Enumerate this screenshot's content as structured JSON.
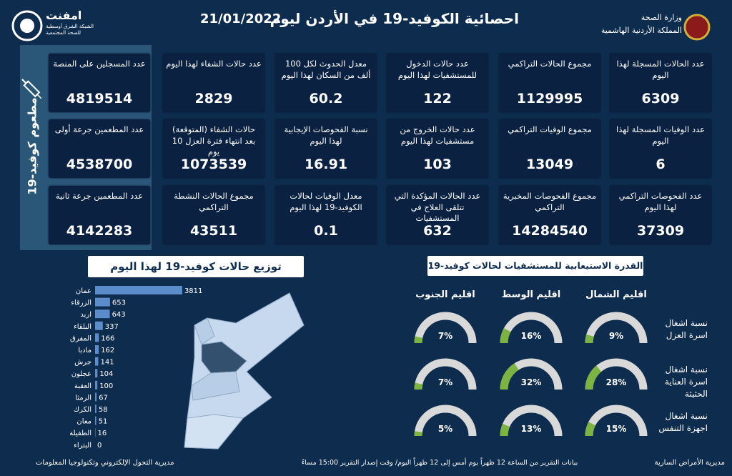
{
  "header": {
    "title": "احصائية الكوفيد-19 في الأردن ليوم",
    "date": "21/01/2022",
    "ministry": "وزارة الصحة",
    "kingdom": "المملكة الأردنية الهاشمية",
    "logo_name": "امفنت",
    "logo_subtitle": "الشبكة الشرق أوسطية للصحة المجتمعية"
  },
  "stats": [
    {
      "label": "عدد الحالات المسجلة لهذا اليوم",
      "value": 6309
    },
    {
      "label": "مجموع الحالات التراكمي",
      "value": 1129995
    },
    {
      "label": "عدد حالات الدخول للمستشفيات لهذا اليوم",
      "value": 122
    },
    {
      "label": "معدل الحدوث لكل 100 ألف من السكان لهذا اليوم",
      "value": 60.2
    },
    {
      "label": "عدد حالات الشفاء لهذا اليوم",
      "value": 2829
    },
    {
      "label": "عدد الوفيات المسجلة لهذا اليوم",
      "value": 6
    },
    {
      "label": "مجموع الوفيات التراكمي",
      "value": 13049
    },
    {
      "label": "عدد حالات الخروج من مستشفيات لهذا اليوم",
      "value": 103
    },
    {
      "label": "نسبة الفحوصات الإيجابية لهذا اليوم",
      "value": 16.91
    },
    {
      "label": "حالات الشفاء (المتوقعة) بعد انتهاء فترة العزل 10 يوم",
      "value": 1073539
    },
    {
      "label": "عدد الفحوصات التراكمي لهذا اليوم",
      "value": 37309
    },
    {
      "label": "مجموع الفحوصات المخبرية التراكمي",
      "value": 14284540
    },
    {
      "label": "عدد الحالات المؤكدة التي تتلقى العلاج في المستشفيات",
      "value": 632
    },
    {
      "label": "معدل الوفيات لحالات الكوفيد-19 لهذا اليوم",
      "value": 0.1
    },
    {
      "label": "مجموع الحالات النشطة التراكمي",
      "value": 43511
    }
  ],
  "vaccination": {
    "title": "مطعوم كوفيد-19",
    "cards": [
      {
        "label": "عدد المسجلين على المنصة",
        "value": 4819514
      },
      {
        "label": "عدد المطعمين جرعة أولى",
        "value": 4538700
      },
      {
        "label": "عدد المطعمين جرعة ثانية",
        "value": 4142283
      }
    ]
  },
  "chart_data": [
    {
      "type": "bar",
      "orientation": "horizontal",
      "title": "توزيع حالات كوفيد-19 لهذا اليوم",
      "categories": [
        "عمان",
        "الزرقاء",
        "اربد",
        "البلقاء",
        "المفرق",
        "مادبا",
        "جرش",
        "عجلون",
        "العقبة",
        "الرمثا",
        "الكرك",
        "معان",
        "الطفيلة",
        "البتراء"
      ],
      "values": [
        3811,
        653,
        643,
        337,
        166,
        162,
        141,
        104,
        100,
        67,
        58,
        51,
        16,
        0
      ],
      "color": "#5b8ccc",
      "xlim": [
        0,
        4000
      ]
    },
    {
      "type": "gauge",
      "title": "القدرة الاستيعابية للمستشفيات لحالات كوفيد-19",
      "categories": [
        "اقليم الشمال",
        "اقليم الوسط",
        "اقليم الجنوب"
      ],
      "ylim": [
        0,
        100
      ],
      "track_color": "#d9d9d9",
      "series": [
        {
          "name": "نسبة اشغال اسرة العزل",
          "color": "#7cb342",
          "values": [
            9,
            16,
            7
          ],
          "value_labels": [
            "9%",
            "16%",
            "7%"
          ]
        },
        {
          "name": "نسبة اشغال اسرة العناية الحثيثة",
          "color": "#7cb342",
          "values": [
            28,
            32,
            7
          ],
          "value_labels": [
            "28%",
            "32%",
            "7%"
          ]
        },
        {
          "name": "نسبة اشغال اجهزة التنفس",
          "color": "#7cb342",
          "values": [
            15,
            13,
            5
          ],
          "value_labels": [
            "15%",
            "13%",
            "5%"
          ]
        }
      ]
    }
  ],
  "footer": {
    "right": "مديرية الأمراض السارية",
    "center": "بيانات التقرير من الساعة 12 ظهراً يوم أمس إلى 12 ظهراً اليوم/ وقت إصدار التقرير 15:00 مساءً",
    "left": "مديرية التحول الإلكتروني وتكنولوجيا المعلومات"
  }
}
